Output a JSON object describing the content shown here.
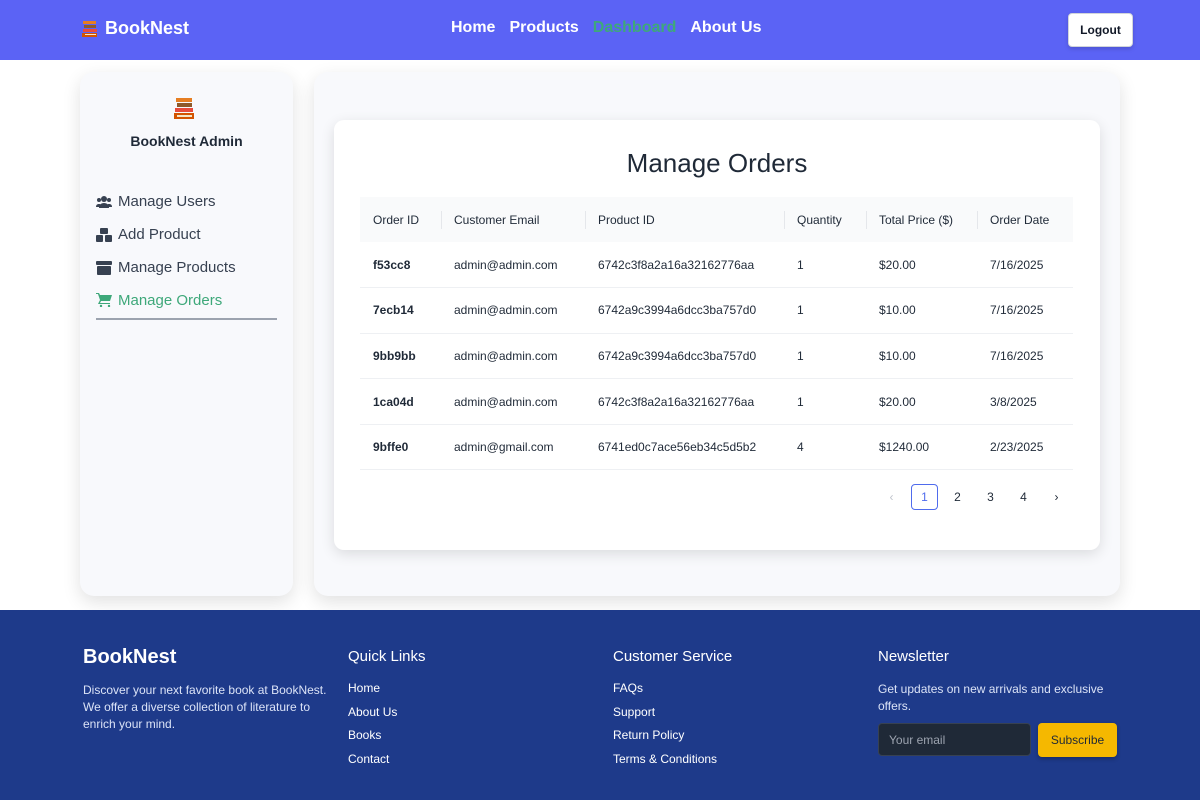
{
  "navbar": {
    "brand": "BookNest",
    "links": [
      "Home",
      "Products",
      "Dashboard",
      "About Us"
    ],
    "active_link": "Dashboard",
    "logout_label": "Logout"
  },
  "sidebar": {
    "title": "BookNest Admin",
    "items": [
      {
        "label": "Manage Users",
        "icon": "users-icon"
      },
      {
        "label": "Add Product",
        "icon": "boxes-icon"
      },
      {
        "label": "Manage Products",
        "icon": "box-icon"
      },
      {
        "label": "Manage Orders",
        "icon": "cart-icon"
      }
    ],
    "active_item": "Manage Orders"
  },
  "orders": {
    "title": "Manage Orders",
    "columns": [
      "Order ID",
      "Customer Email",
      "Product ID",
      "Quantity",
      "Total Price ($)",
      "Order Date"
    ],
    "rows": [
      [
        "f53cc8",
        "admin@admin.com",
        "6742c3f8a2a16a32162776aa",
        "1",
        "$20.00",
        "7/16/2025"
      ],
      [
        "7ecb14",
        "admin@admin.com",
        "6742a9c3994a6dcc3ba757d0",
        "1",
        "$10.00",
        "7/16/2025"
      ],
      [
        "9bb9bb",
        "admin@admin.com",
        "6742a9c3994a6dcc3ba757d0",
        "1",
        "$10.00",
        "7/16/2025"
      ],
      [
        "1ca04d",
        "admin@admin.com",
        "6742c3f8a2a16a32162776aa",
        "1",
        "$20.00",
        "3/8/2025"
      ],
      [
        "9bffe0",
        "admin@gmail.com",
        "6741ed0c7ace56eb34c5d5b2",
        "4",
        "$1240.00",
        "2/23/2025"
      ]
    ],
    "pagination": {
      "pages": [
        "1",
        "2",
        "3",
        "4"
      ],
      "current": "1",
      "prev": "‹",
      "next": "›"
    }
  },
  "footer": {
    "brand": "BookNest",
    "description": "Discover your next favorite book at BookNest. We offer a diverse collection of literature to enrich your mind.",
    "quick_links": {
      "heading": "Quick Links",
      "items": [
        "Home",
        "About Us",
        "Books",
        "Contact"
      ]
    },
    "customer_service": {
      "heading": "Customer Service",
      "items": [
        "FAQs",
        "Support",
        "Return Policy",
        "Terms & Conditions"
      ]
    },
    "newsletter": {
      "heading": "Newsletter",
      "text": "Get updates on new arrivals and exclusive offers.",
      "email_placeholder": "Your email",
      "button_label": "Subscribe"
    }
  },
  "colors": {
    "navbar_bg": "#5b63f5",
    "active_green": "#3ea87a",
    "footer_bg": "#1e3a8a",
    "subscribe_bg": "#f5b800",
    "pagination_accent": "#4f6bed"
  }
}
